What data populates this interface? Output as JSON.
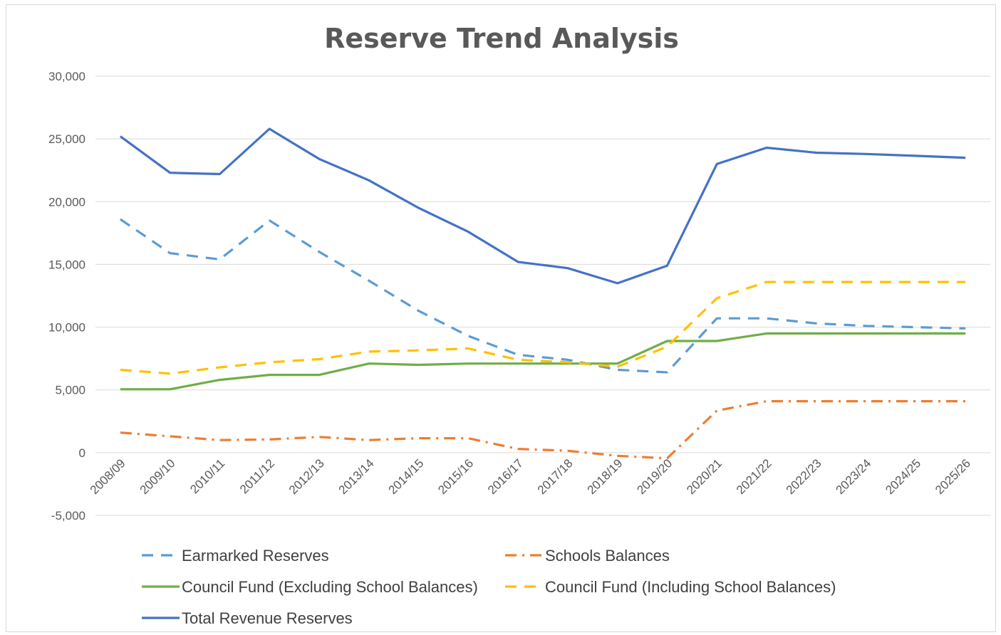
{
  "chart_data": {
    "type": "line",
    "title": "Reserve Trend Analysis",
    "xlabel": "",
    "ylabel": "",
    "ylim": [
      -5000,
      30000
    ],
    "y_ticks": [
      -5000,
      0,
      5000,
      10000,
      15000,
      20000,
      25000,
      30000
    ],
    "y_tick_labels": [
      "-5,000",
      "0",
      "5,000",
      "10,000",
      "15,000",
      "20,000",
      "25,000",
      "30,000"
    ],
    "grid": true,
    "legend_position": "bottom",
    "categories": [
      "2008/09",
      "2009/10",
      "2010/11",
      "2011/12",
      "2012/13",
      "2013/14",
      "2014/15",
      "2015/16",
      "2016/17",
      "2017/18",
      "2018/19",
      "2019/20",
      "2020/21",
      "2021/22",
      "2022/23",
      "2023/24",
      "2024/25",
      "2025/26"
    ],
    "series": [
      {
        "name": "Earmarked Reserves",
        "color": "#5b9bd5",
        "dash": "dash",
        "values": [
          18600,
          15900,
          15400,
          18500,
          16000,
          13700,
          11300,
          9300,
          7800,
          7400,
          6600,
          6400,
          10700,
          10700,
          10300,
          10100,
          10000,
          9900
        ]
      },
      {
        "name": "Schools Balances",
        "color": "#ed7d31",
        "dash": "dashdot",
        "values": [
          1600,
          1300,
          1000,
          1050,
          1250,
          1000,
          1150,
          1150,
          300,
          150,
          -250,
          -450,
          3350,
          4100,
          4100,
          4100,
          4100,
          4100
        ]
      },
      {
        "name": "Council Fund (Excluding School Balances)",
        "color": "#70ad47",
        "dash": "solid",
        "values": [
          5050,
          5050,
          5800,
          6200,
          6200,
          7100,
          7000,
          7100,
          7100,
          7100,
          7100,
          8900,
          8900,
          9500,
          9500,
          9500,
          9500,
          9500
        ]
      },
      {
        "name": "Council Fund (Including School Balances)",
        "color": "#ffc000",
        "dash": "dash",
        "values": [
          6600,
          6300,
          6800,
          7200,
          7450,
          8050,
          8150,
          8300,
          7400,
          7200,
          6850,
          8450,
          12300,
          13600,
          13600,
          13600,
          13600,
          13600
        ]
      },
      {
        "name": "Total Revenue Reserves",
        "color": "#4472c4",
        "dash": "solid",
        "values": [
          25200,
          22300,
          22200,
          25800,
          23400,
          21700,
          19500,
          17600,
          15200,
          14700,
          13500,
          14900,
          23000,
          24300,
          23900,
          23800,
          23650,
          23500
        ]
      }
    ]
  }
}
